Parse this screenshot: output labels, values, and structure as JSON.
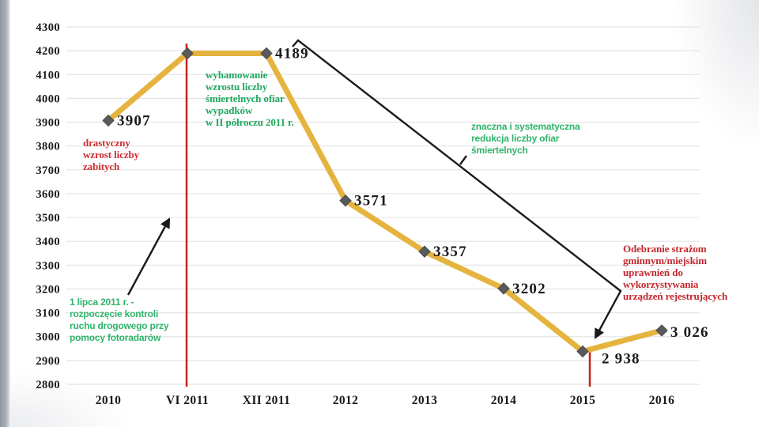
{
  "slide": {
    "background": "#FFFFFF",
    "edge_bar_color": "#9AA0AC"
  },
  "chart_data": {
    "type": "line",
    "title": "",
    "categories": [
      "2010",
      "VI 2011",
      "XII 2011",
      "2012",
      "2013",
      "2014",
      "2015",
      "2016"
    ],
    "values": [
      3907,
      4189,
      4189,
      3571,
      3357,
      3202,
      2938,
      3026
    ],
    "point_labels": [
      "3907",
      "",
      "4189",
      "3571",
      "3357",
      "3202",
      "2 938",
      "3 026"
    ],
    "xlabel": "",
    "ylabel": "",
    "ylim": [
      2800,
      4300
    ],
    "ytick_step": 100,
    "grid": true,
    "legend": "none",
    "line_color": "#E5B43E",
    "marker_color": "#595A5C",
    "marker_edge_color": "#47484A",
    "gridline_color": "#E4E4E4",
    "axis_text_color": "#1A1A1A",
    "point_label_color": "#1A1A1A",
    "connector_color": "#1A1A1A",
    "event_lines": [
      {
        "category": "VI 2011",
        "from_value": 4230,
        "to_value": 2790,
        "color": "#C7231F"
      },
      {
        "category": "2015",
        "from_value": 2938,
        "to_value": 2790,
        "color": "#C7231F"
      }
    ],
    "annotations": [
      {
        "id": "drastyczny",
        "text": "drastyczny\nwzrost liczby\nzabitych",
        "color": "#CD2B30"
      },
      {
        "id": "wyhamowanie",
        "text": "wyhamowanie\nwzrostu liczby\nśmiertelnych ofiar\nwypadków\nw II półroczu 2011 r.",
        "color": "#1FA75D"
      },
      {
        "id": "znaczna",
        "text": "znaczna i systematyczna\nredukcja liczby ofiar\nśmiertelnych",
        "color": "#2FB36B"
      },
      {
        "id": "lipca",
        "text": "1 lipca 2011 r. -\nrozpoczęcie kontroli\nruchu drogowego przy\npomocy fotoradarów",
        "color": "#2FB36B"
      },
      {
        "id": "odebranie",
        "text": "Odebranie strażom\ngminnym/miejskim\nuprawnień do\nwykorzystywania\nurządzeń rejestrujących",
        "color": "#C2272D"
      }
    ]
  }
}
